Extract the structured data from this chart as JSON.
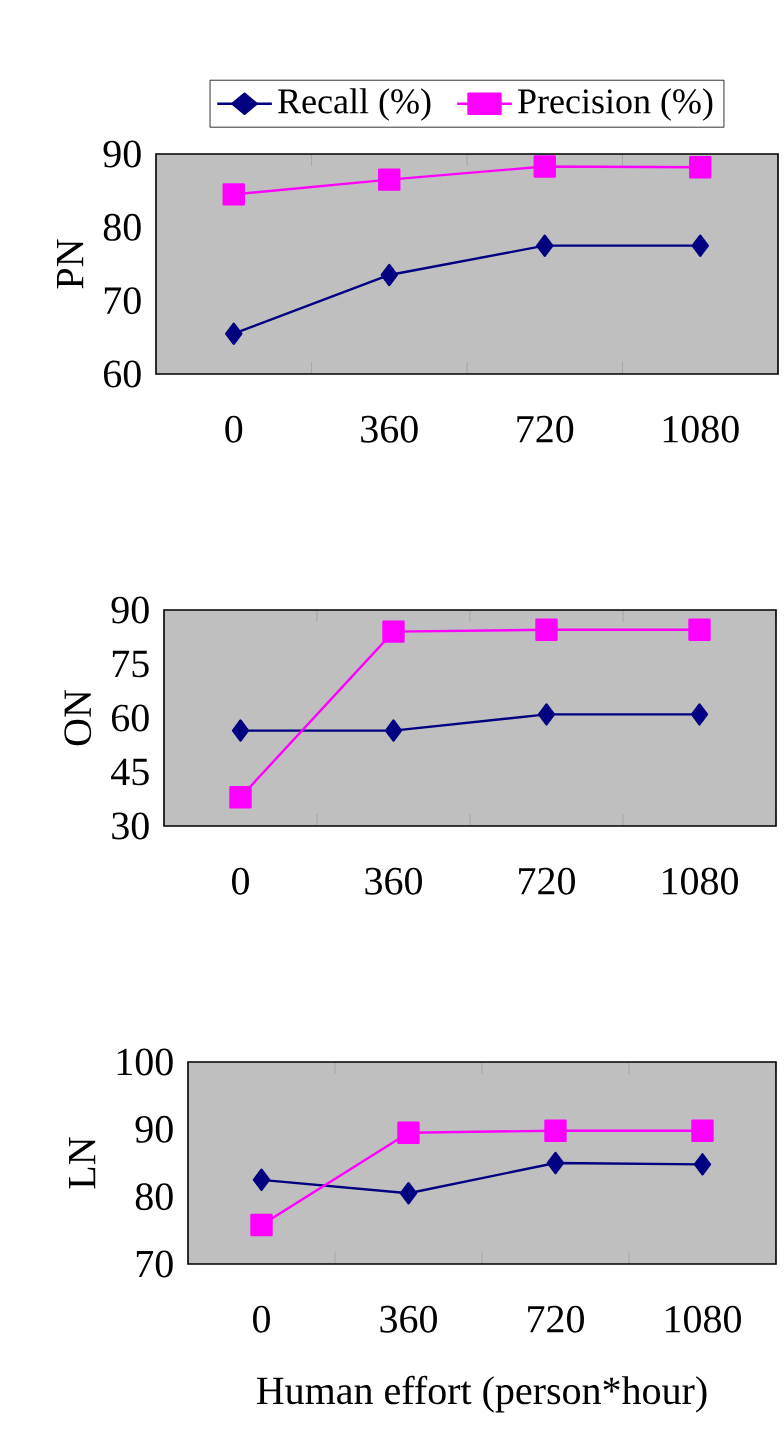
{
  "chart_data": [
    {
      "type": "line",
      "ylabel": "PN",
      "categories": [
        "0",
        "360",
        "720",
        "1080"
      ],
      "ylim": [
        60,
        90
      ],
      "yticks": [
        60,
        70,
        80,
        90
      ],
      "legend": "top",
      "series": [
        {
          "name": "Recall (%)",
          "color": "#000080",
          "marker": "diamond",
          "values": [
            65.5,
            73.5,
            77.5,
            77.5
          ]
        },
        {
          "name": "Precision (%)",
          "color": "#ff00ff",
          "marker": "square",
          "values": [
            84.5,
            86.5,
            88.3,
            88.2
          ]
        }
      ]
    },
    {
      "type": "line",
      "ylabel": "ON",
      "categories": [
        "0",
        "360",
        "720",
        "1080"
      ],
      "ylim": [
        30,
        90
      ],
      "yticks": [
        30,
        45,
        60,
        75,
        90
      ],
      "series": [
        {
          "color": "#000080",
          "marker": "diamond",
          "values": [
            56.5,
            56.5,
            61,
            61
          ]
        },
        {
          "color": "#ff00ff",
          "marker": "square",
          "values": [
            38,
            84,
            84.5,
            84.5
          ]
        }
      ]
    },
    {
      "type": "line",
      "ylabel": "LN",
      "xlabel": "Human effort (person*hour)",
      "categories": [
        "0",
        "360",
        "720",
        "1080"
      ],
      "ylim": [
        70,
        100
      ],
      "yticks": [
        70,
        80,
        90,
        100
      ],
      "series": [
        {
          "color": "#000080",
          "marker": "diamond",
          "values": [
            82.5,
            80.5,
            85,
            84.8
          ]
        },
        {
          "color": "#ff00ff",
          "marker": "square",
          "values": [
            75.8,
            89.5,
            89.8,
            89.8
          ]
        }
      ]
    }
  ]
}
